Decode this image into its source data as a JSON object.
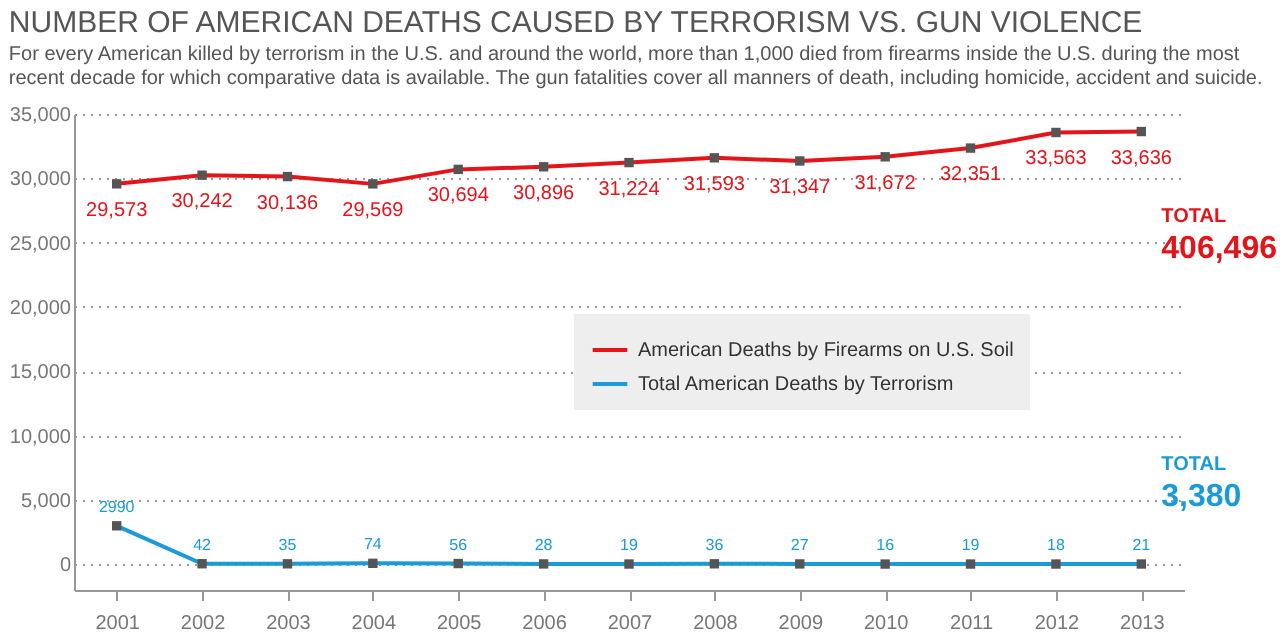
{
  "chart_data": {
    "type": "line",
    "title": "NUMBER OF AMERICAN DEATHS CAUSED BY TERRORISM VS. GUN VIOLENCE",
    "subtitle": [
      "For every American killed by terrorism in the U.S. and around the world, more than 1,000 died from firearms inside the U.S. during the most",
      "recent decade for which comparative data is available. The gun fatalities cover all manners of death, including homicide, accident and suicide."
    ],
    "categories": [
      "2001",
      "2002",
      "2003",
      "2004",
      "2005",
      "2006",
      "2007",
      "2008",
      "2009",
      "2010",
      "2011",
      "2012",
      "2013"
    ],
    "series": [
      {
        "name": "American Deaths by Firearms on U.S. Soil",
        "color": "#e3151a",
        "values": [
          29573,
          30242,
          30136,
          29569,
          30694,
          30896,
          31224,
          31593,
          31347,
          31672,
          32351,
          33563,
          33636
        ],
        "value_labels": [
          "29,573",
          "30,242",
          "30,136",
          "29,569",
          "30,694",
          "30,896",
          "31,224",
          "31,593",
          "31,347",
          "31,672",
          "32,351",
          "33,563",
          "33,636"
        ]
      },
      {
        "name": "Total American Deaths by Terrorism",
        "color": "#1a9ad6",
        "values": [
          2990,
          42,
          35,
          74,
          56,
          28,
          19,
          36,
          27,
          16,
          19,
          18,
          21
        ],
        "value_labels": [
          "2990",
          "42",
          "35",
          "74",
          "56",
          "28",
          "19",
          "36",
          "27",
          "16",
          "19",
          "18",
          "21"
        ]
      }
    ],
    "annotations": [
      {
        "text": "TOTAL\n406,496",
        "x": "2013",
        "y": 33636
      },
      {
        "text": "TOTAL\n3,380",
        "x": "2013",
        "y": 21
      }
    ],
    "ylim": [
      -2000,
      35000
    ],
    "yticks": [
      0,
      {
        "value": 5000,
        "label": "5,000"
      },
      {
        "value": 10000,
        "label": "10,000"
      },
      {
        "value": 15000,
        "label": "15,000"
      },
      {
        "value": 20000,
        "label": "20,000"
      },
      {
        "value": 25000,
        "label": "25,000"
      },
      {
        "value": 30000,
        "label": "30,000"
      },
      {
        "value": 35000,
        "label": "35,000"
      }
    ],
    "grid": "y",
    "legend": "right",
    "marker": "square",
    "line_style": "solid"
  }
}
